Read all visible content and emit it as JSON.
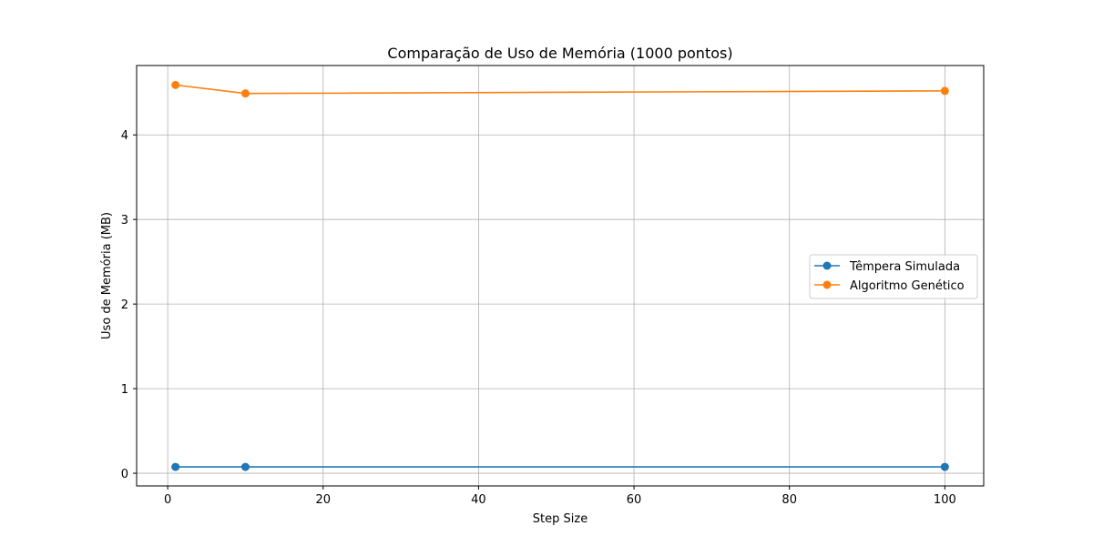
{
  "chart_data": {
    "type": "line",
    "title": "Comparação de Uso de Memória (1000 pontos)",
    "xlabel": "Step Size",
    "ylabel": "Uso de Memória (MB)",
    "xlim": [
      -4,
      105
    ],
    "ylim": [
      -0.15,
      4.82
    ],
    "xticks": [
      0,
      20,
      40,
      60,
      80,
      100
    ],
    "yticks": [
      0,
      1,
      2,
      3,
      4
    ],
    "grid": true,
    "legend_position": "center-right",
    "series": [
      {
        "name": "Têmpera Simulada",
        "color": "#1f77b4",
        "marker": "circle",
        "x": [
          1,
          10,
          100
        ],
        "y": [
          0.075,
          0.075,
          0.075
        ]
      },
      {
        "name": "Algoritmo Genético",
        "color": "#ff7f0e",
        "marker": "circle",
        "x": [
          1,
          10,
          100
        ],
        "y": [
          4.59,
          4.49,
          4.52
        ]
      }
    ]
  }
}
